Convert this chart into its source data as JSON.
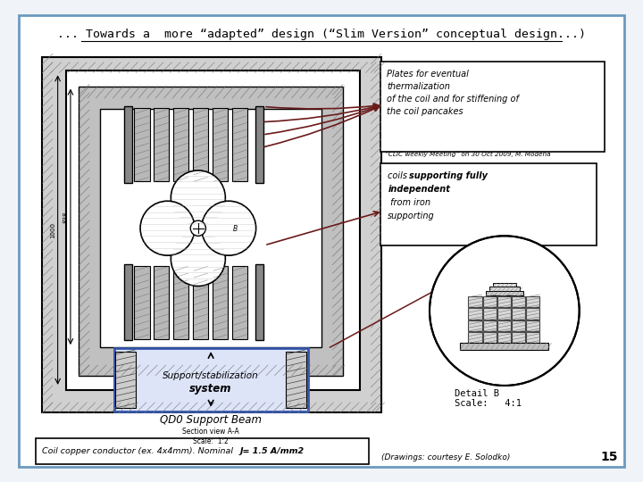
{
  "title": "... Towards a  more “adapted” design (“Slim Version” conceptual design...)",
  "bg_color": "#f0f4f8",
  "border_color": "#6b9abf",
  "plate_box_text": "Plates for eventual\nthermalization\nof the coil and for stiffening of\nthe coil pancakes",
  "support_text1": "Support/stabilization",
  "support_text2": "system",
  "qd0_text": "QD0 Support Beam",
  "section_text": "Section view A-A\nScale:  1:2",
  "detail_text": "Detail B\nScale:   4:1",
  "clic_text": "“CLIC weekly Meeting” on 30 Oct 2009, M. Modena",
  "coil_text": "Coil copper conductor (ex. 4x4mm). Nominal ",
  "coil_text_bold": "J= 1.5 A/mm2",
  "drawings_text": "(Drawings: courtesy E. Solodko)",
  "page_num": "15",
  "dark_red": "#6b1a1a",
  "plate_gray": "#b8b8b8",
  "plate_dark": "#888888",
  "iron_color": "#d0d0d0",
  "inner_iron_color": "#c0c0c0",
  "box_fill": "#ffffff"
}
